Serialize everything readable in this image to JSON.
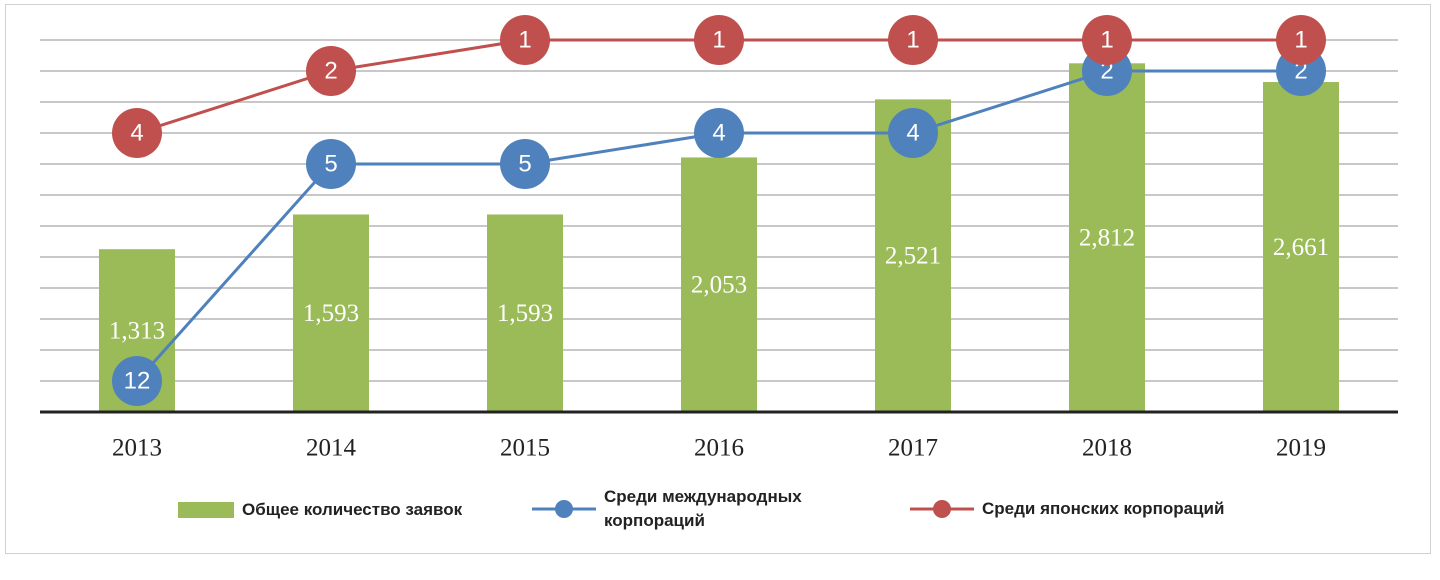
{
  "chart_data": {
    "type": "combo",
    "categories": [
      "2013",
      "2014",
      "2015",
      "2016",
      "2017",
      "2018",
      "2019"
    ],
    "series": [
      {
        "name": "Общее количество заявок",
        "type": "bar",
        "color": "#9bbb59",
        "values": [
          1313,
          1593,
          1593,
          2053,
          2521,
          2812,
          2661
        ],
        "value_labels": [
          "1,313",
          "1,593",
          "1,593",
          "2,053",
          "2,521",
          "2,812",
          "2,661"
        ]
      },
      {
        "name": "Среди международных корпораций",
        "type": "line",
        "axis": "y2",
        "color": "#4f81bd",
        "values": [
          12,
          5,
          5,
          4,
          4,
          2,
          2
        ]
      },
      {
        "name": "Среди японских корпораций",
        "type": "line",
        "axis": "y2",
        "color": "#c0504d",
        "values": [
          4,
          2,
          1,
          1,
          1,
          1,
          1
        ]
      }
    ],
    "ylim": [
      0,
      3000
    ],
    "yticks": [
      0,
      250,
      500,
      750,
      1000,
      1250,
      1500,
      1750,
      2000,
      2250,
      2500,
      2750,
      3000
    ],
    "y2lim": [
      13,
      1
    ],
    "grid": true
  }
}
